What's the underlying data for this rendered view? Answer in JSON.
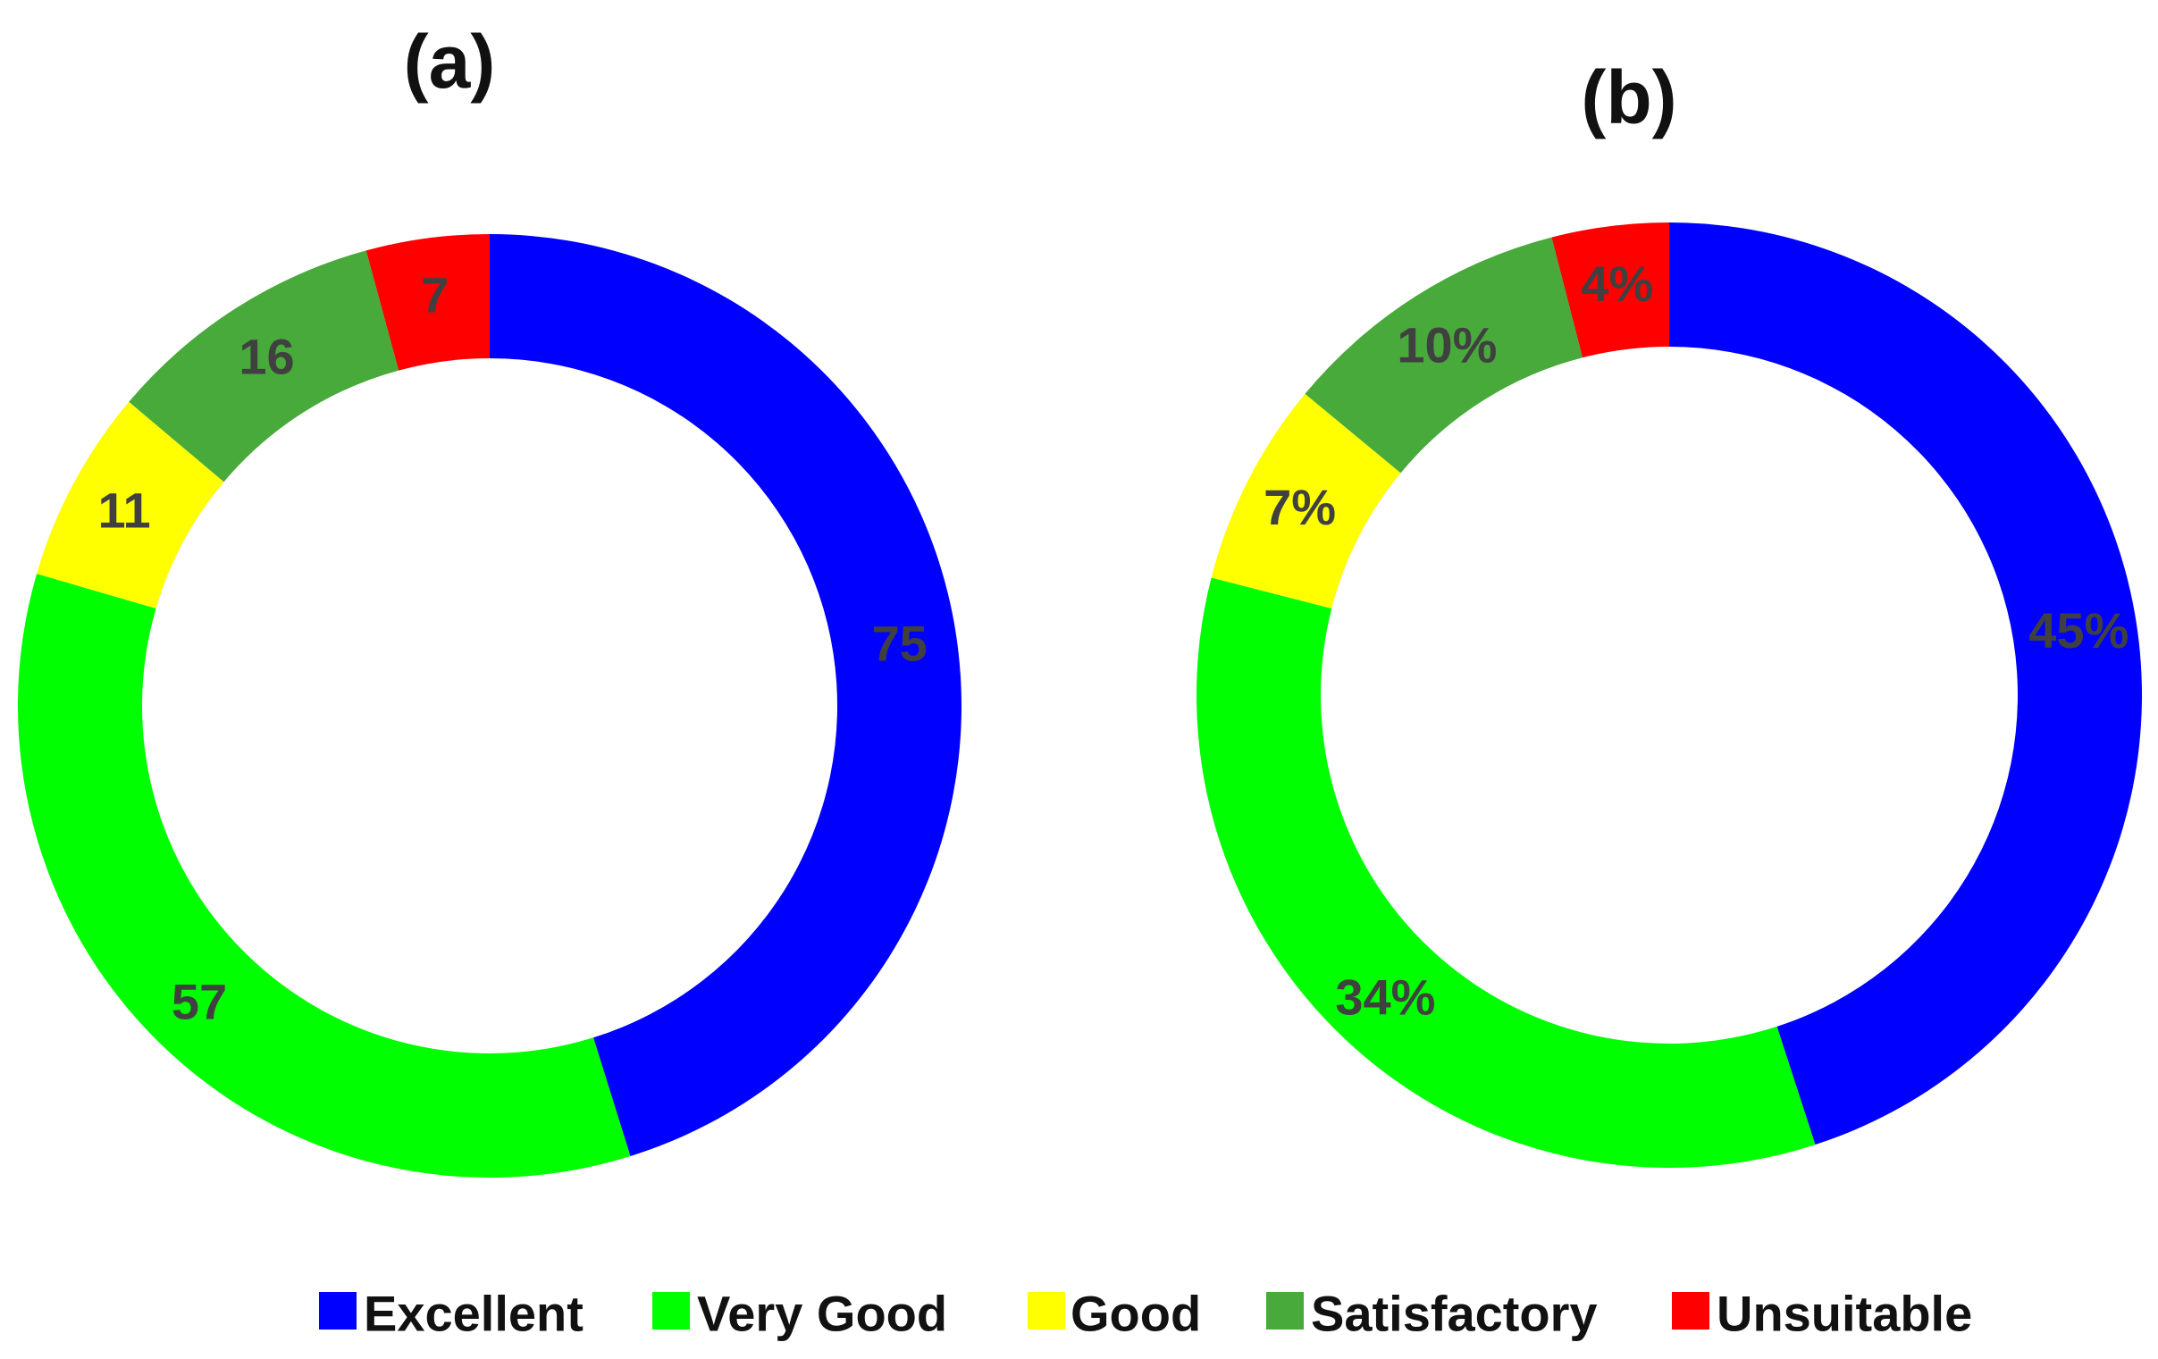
{
  "chart_data": [
    {
      "type": "pie",
      "variant": "donut",
      "title": "(a)",
      "categories": [
        "Excellent",
        "Very Good",
        "Good",
        "Satisfactory",
        "Unsuitable"
      ],
      "values": [
        75,
        57,
        11,
        16,
        7
      ],
      "data_labels": [
        "75",
        "57",
        "11",
        "16",
        "7"
      ],
      "start_angle": "12 o'clock",
      "direction": "clockwise"
    },
    {
      "type": "pie",
      "variant": "donut",
      "title": "(b)",
      "categories": [
        "Excellent",
        "Very Good",
        "Good",
        "Satisfactory",
        "Unsuitable"
      ],
      "values": [
        45,
        34,
        7,
        10,
        4
      ],
      "data_labels": [
        "45%",
        "34%",
        "7%",
        "10%",
        "4%"
      ],
      "start_angle": "12 o'clock",
      "direction": "clockwise"
    }
  ],
  "legend": {
    "placement": "bottom-center",
    "items": [
      {
        "label": "Excellent",
        "color": "#0000FF"
      },
      {
        "label": "Very Good",
        "color": "#00FF00"
      },
      {
        "label": "Good",
        "color": "#FFFF00"
      },
      {
        "label": "Satisfactory",
        "color": "#47AA3A"
      },
      {
        "label": "Unsuitable",
        "color": "#FF0000"
      }
    ]
  }
}
